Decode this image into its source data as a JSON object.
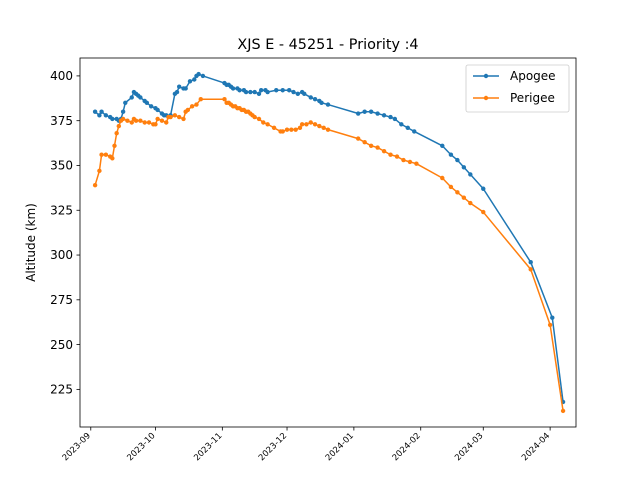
{
  "chart_data": {
    "type": "line",
    "title": "XJS E - 45251 - Priority :4",
    "xlabel": "",
    "ylabel": "Altitude (km)",
    "xlim": [
      "2023-08-27",
      "2024-04-13"
    ],
    "ylim": [
      204,
      410
    ],
    "yticks": [
      225,
      250,
      275,
      300,
      325,
      350,
      375,
      400
    ],
    "xticks": [
      "2023-09",
      "2023-10",
      "2023-11",
      "2023-12",
      "2024-01",
      "2024-02",
      "2024-03",
      "2024-04"
    ],
    "grid": false,
    "legend": "top-right",
    "series": [
      {
        "name": "Apogee",
        "color": "#1f77b4",
        "points": [
          [
            "2023-09-03",
            380
          ],
          [
            "2023-09-05",
            378
          ],
          [
            "2023-09-06",
            380
          ],
          [
            "2023-09-08",
            378
          ],
          [
            "2023-09-10",
            377
          ],
          [
            "2023-09-11",
            376
          ],
          [
            "2023-09-13",
            376
          ],
          [
            "2023-09-14",
            375
          ],
          [
            "2023-09-15",
            376
          ],
          [
            "2023-09-16",
            380
          ],
          [
            "2023-09-17",
            385
          ],
          [
            "2023-09-20",
            388
          ],
          [
            "2023-09-21",
            391
          ],
          [
            "2023-09-22",
            390
          ],
          [
            "2023-09-23",
            389
          ],
          [
            "2023-09-24",
            388
          ],
          [
            "2023-09-26",
            386
          ],
          [
            "2023-09-27",
            385
          ],
          [
            "2023-09-29",
            383
          ],
          [
            "2023-10-01",
            382
          ],
          [
            "2023-10-02",
            381
          ],
          [
            "2023-10-04",
            379
          ],
          [
            "2023-10-05",
            378
          ],
          [
            "2023-10-06",
            378
          ],
          [
            "2023-10-08",
            378
          ],
          [
            "2023-10-10",
            390
          ],
          [
            "2023-10-11",
            391
          ],
          [
            "2023-10-12",
            394
          ],
          [
            "2023-10-14",
            393
          ],
          [
            "2023-10-15",
            393
          ],
          [
            "2023-10-17",
            397
          ],
          [
            "2023-10-19",
            398
          ],
          [
            "2023-10-20",
            400
          ],
          [
            "2023-10-21",
            401
          ],
          [
            "2023-10-23",
            400
          ],
          [
            "2023-11-02",
            396
          ],
          [
            "2023-11-03",
            395
          ],
          [
            "2023-11-04",
            395
          ],
          [
            "2023-11-05",
            394
          ],
          [
            "2023-11-06",
            393
          ],
          [
            "2023-11-08",
            393
          ],
          [
            "2023-11-09",
            392
          ],
          [
            "2023-11-11",
            392
          ],
          [
            "2023-11-12",
            391
          ],
          [
            "2023-11-14",
            391
          ],
          [
            "2023-11-16",
            391
          ],
          [
            "2023-11-18",
            390
          ],
          [
            "2023-11-19",
            392
          ],
          [
            "2023-11-21",
            392
          ],
          [
            "2023-11-22",
            391
          ],
          [
            "2023-11-26",
            392
          ],
          [
            "2023-11-29",
            392
          ],
          [
            "2023-12-02",
            392
          ],
          [
            "2023-12-04",
            391
          ],
          [
            "2023-12-06",
            390
          ],
          [
            "2023-12-08",
            391
          ],
          [
            "2023-12-09",
            390
          ],
          [
            "2023-12-12",
            388
          ],
          [
            "2023-12-14",
            387
          ],
          [
            "2023-12-16",
            386
          ],
          [
            "2023-12-17",
            385
          ],
          [
            "2023-12-20",
            384
          ],
          [
            "2024-01-03",
            379
          ],
          [
            "2024-01-06",
            380
          ],
          [
            "2024-01-09",
            380
          ],
          [
            "2024-01-12",
            379
          ],
          [
            "2024-01-15",
            378
          ],
          [
            "2024-01-18",
            377
          ],
          [
            "2024-01-20",
            376
          ],
          [
            "2024-01-23",
            373
          ],
          [
            "2024-01-26",
            371
          ],
          [
            "2024-01-29",
            369
          ],
          [
            "2024-02-11",
            361
          ],
          [
            "2024-02-15",
            356
          ],
          [
            "2024-02-18",
            353
          ],
          [
            "2024-02-21",
            349
          ],
          [
            "2024-02-24",
            345
          ],
          [
            "2024-03-01",
            337
          ],
          [
            "2024-03-23",
            296
          ],
          [
            "2024-04-02",
            265
          ],
          [
            "2024-04-07",
            218
          ]
        ]
      },
      {
        "name": "Perigee",
        "color": "#ff7f0e",
        "points": [
          [
            "2023-09-03",
            339
          ],
          [
            "2023-09-05",
            347
          ],
          [
            "2023-09-06",
            356
          ],
          [
            "2023-09-08",
            356
          ],
          [
            "2023-09-10",
            355
          ],
          [
            "2023-09-11",
            354
          ],
          [
            "2023-09-12",
            361
          ],
          [
            "2023-09-13",
            368
          ],
          [
            "2023-09-14",
            372
          ],
          [
            "2023-09-15",
            375
          ],
          [
            "2023-09-16",
            376
          ],
          [
            "2023-09-18",
            375
          ],
          [
            "2023-09-20",
            374
          ],
          [
            "2023-09-21",
            376
          ],
          [
            "2023-09-22",
            375
          ],
          [
            "2023-09-24",
            375
          ],
          [
            "2023-09-26",
            374
          ],
          [
            "2023-09-28",
            374
          ],
          [
            "2023-09-30",
            373
          ],
          [
            "2023-10-01",
            373
          ],
          [
            "2023-10-02",
            376
          ],
          [
            "2023-10-04",
            375
          ],
          [
            "2023-10-06",
            374
          ],
          [
            "2023-10-07",
            377
          ],
          [
            "2023-10-08",
            377
          ],
          [
            "2023-10-10",
            378
          ],
          [
            "2023-10-12",
            377
          ],
          [
            "2023-10-14",
            376
          ],
          [
            "2023-10-15",
            380
          ],
          [
            "2023-10-16",
            381
          ],
          [
            "2023-10-18",
            383
          ],
          [
            "2023-10-20",
            384
          ],
          [
            "2023-10-22",
            387
          ],
          [
            "2023-11-02",
            387
          ],
          [
            "2023-11-03",
            385
          ],
          [
            "2023-11-04",
            385
          ],
          [
            "2023-11-05",
            384
          ],
          [
            "2023-11-06",
            383
          ],
          [
            "2023-11-07",
            383
          ],
          [
            "2023-11-08",
            382
          ],
          [
            "2023-11-09",
            382
          ],
          [
            "2023-11-10",
            381
          ],
          [
            "2023-11-11",
            381
          ],
          [
            "2023-11-12",
            380
          ],
          [
            "2023-11-13",
            380
          ],
          [
            "2023-11-14",
            379
          ],
          [
            "2023-11-15",
            378
          ],
          [
            "2023-11-16",
            377
          ],
          [
            "2023-11-18",
            376
          ],
          [
            "2023-11-20",
            374
          ],
          [
            "2023-11-22",
            373
          ],
          [
            "2023-11-25",
            371
          ],
          [
            "2023-11-28",
            369
          ],
          [
            "2023-11-29",
            369
          ],
          [
            "2023-12-01",
            370
          ],
          [
            "2023-12-03",
            370
          ],
          [
            "2023-12-05",
            370
          ],
          [
            "2023-12-07",
            371
          ],
          [
            "2023-12-08",
            373
          ],
          [
            "2023-12-10",
            373
          ],
          [
            "2023-12-12",
            374
          ],
          [
            "2023-12-14",
            373
          ],
          [
            "2023-12-16",
            372
          ],
          [
            "2023-12-18",
            371
          ],
          [
            "2023-12-20",
            370
          ],
          [
            "2024-01-03",
            365
          ],
          [
            "2024-01-06",
            363
          ],
          [
            "2024-01-09",
            361
          ],
          [
            "2024-01-12",
            360
          ],
          [
            "2024-01-15",
            358
          ],
          [
            "2024-01-18",
            356
          ],
          [
            "2024-01-21",
            355
          ],
          [
            "2024-01-24",
            353
          ],
          [
            "2024-01-27",
            352
          ],
          [
            "2024-01-30",
            351
          ],
          [
            "2024-02-11",
            343
          ],
          [
            "2024-02-15",
            338
          ],
          [
            "2024-02-18",
            335
          ],
          [
            "2024-02-21",
            332
          ],
          [
            "2024-02-24",
            329
          ],
          [
            "2024-03-01",
            324
          ],
          [
            "2024-03-23",
            292
          ],
          [
            "2024-04-01",
            261
          ],
          [
            "2024-04-07",
            213
          ]
        ]
      }
    ]
  }
}
